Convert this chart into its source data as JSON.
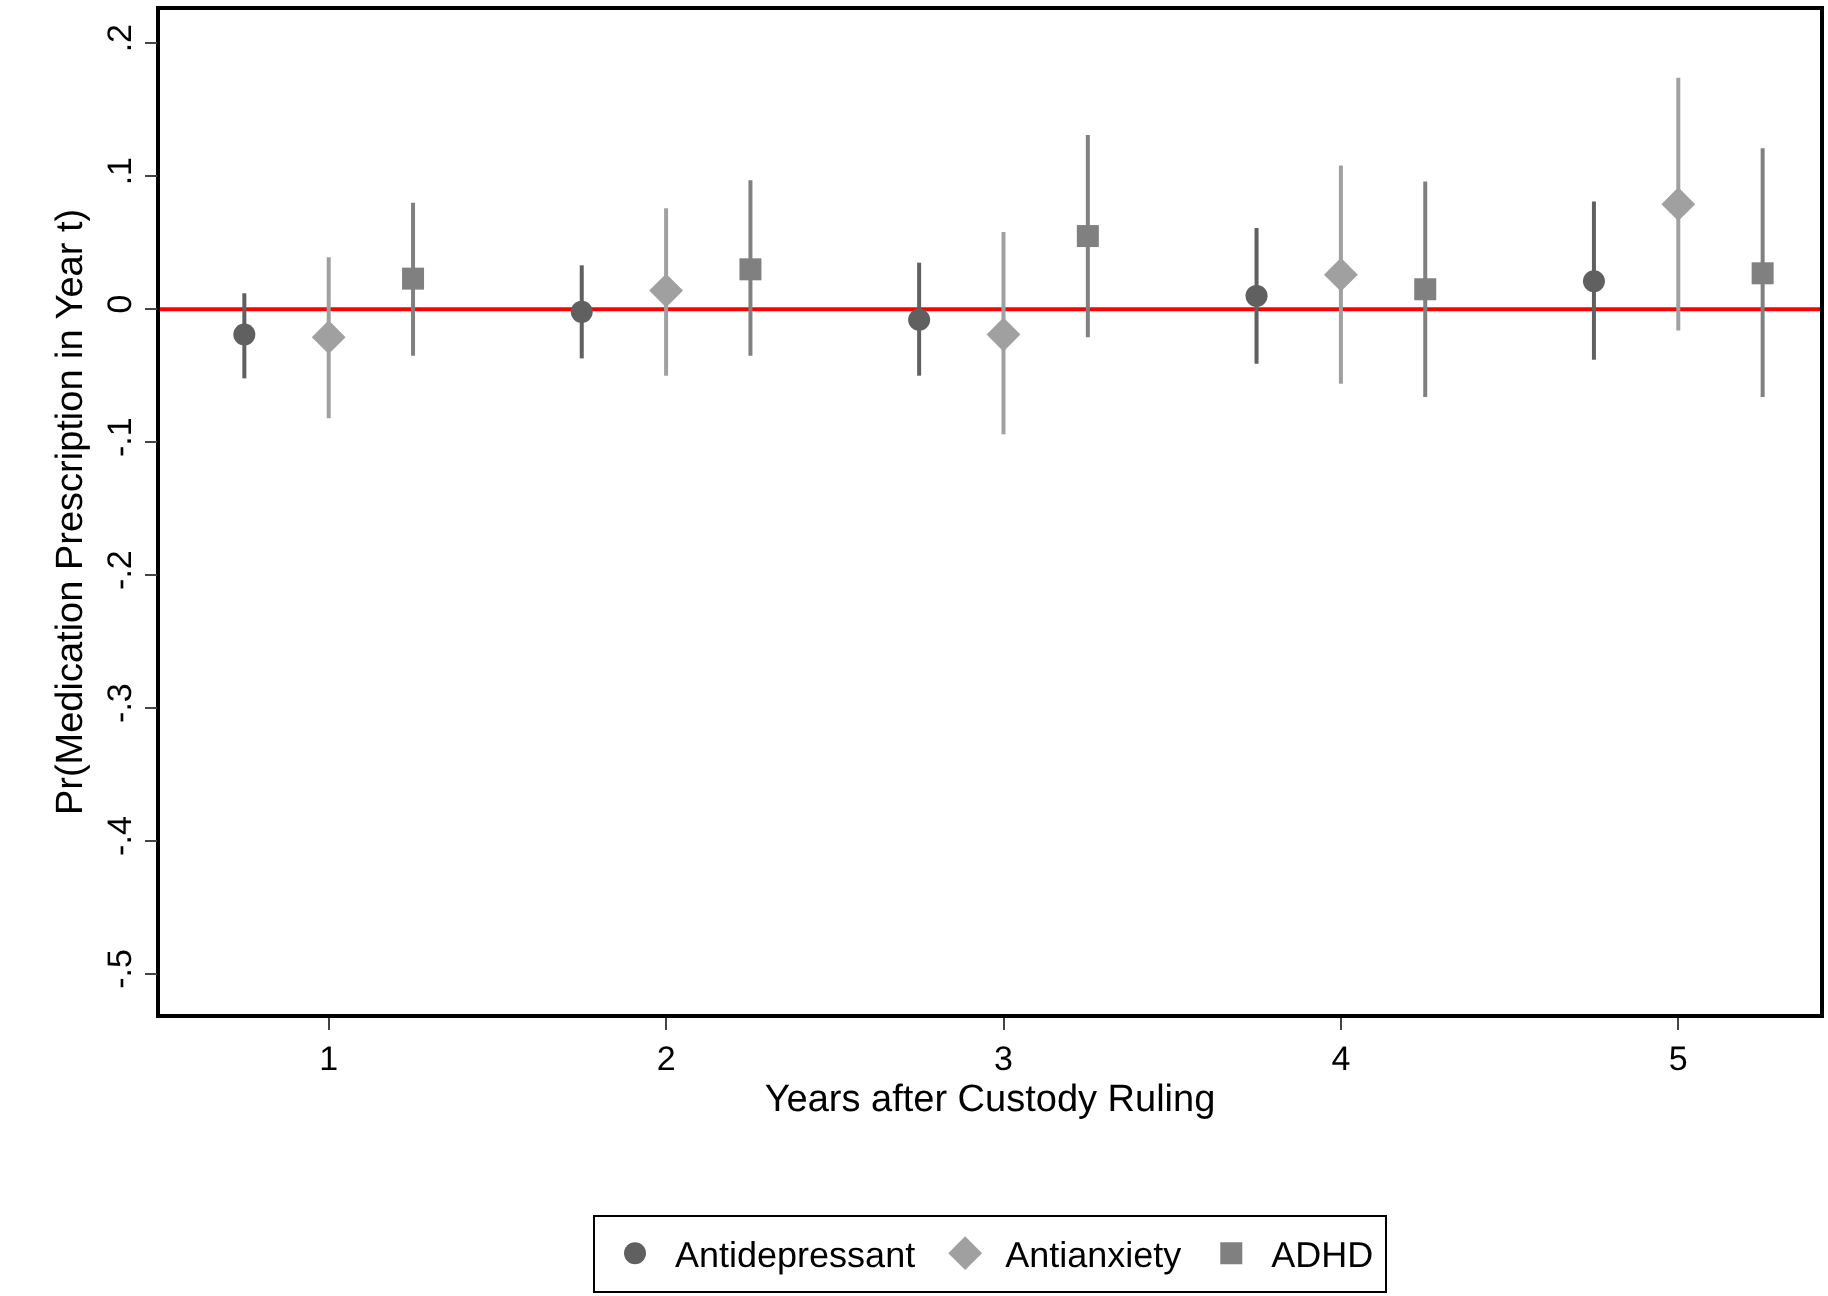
{
  "chart_data": {
    "type": "scatter",
    "xlabel": "Years after Custody Ruling",
    "ylabel": "Pr(Medication Prescription in Year t)",
    "xlim": [
      0.5,
      5.42
    ],
    "xticks": [
      1,
      2,
      3,
      4,
      5
    ],
    "ylim": [
      -0.53,
      0.225
    ],
    "yticks": [
      {
        "value": 0.2,
        "label": ".2"
      },
      {
        "value": 0.1,
        "label": ".1"
      },
      {
        "value": 0,
        "label": "0"
      },
      {
        "value": -0.1,
        "label": "-.1"
      },
      {
        "value": -0.2,
        "label": "-.2"
      },
      {
        "value": -0.3,
        "label": "-.3"
      },
      {
        "value": -0.4,
        "label": "-.4"
      },
      {
        "value": -0.5,
        "label": "-.5"
      }
    ],
    "grid": false,
    "legend": "bottom",
    "ref_lines": [
      {
        "axis": "y",
        "value": 0,
        "color": "#ff0000",
        "line_style": "solid"
      }
    ],
    "series": [
      {
        "name": "Antidepressant",
        "color": "#606060",
        "marker": "circle",
        "x": [
          0.75,
          1.75,
          2.75,
          3.75,
          4.75
        ],
        "values": [
          -0.019,
          -0.002,
          -0.008,
          0.01,
          0.021
        ],
        "errors": [
          [
            -0.052,
            0.012
          ],
          [
            -0.037,
            0.033
          ],
          [
            -0.05,
            0.035
          ],
          [
            -0.041,
            0.061
          ],
          [
            -0.038,
            0.081
          ]
        ]
      },
      {
        "name": "Antianxiety",
        "color": "#a0a0a0",
        "marker": "diamond",
        "x": [
          1,
          2,
          3,
          4,
          5
        ],
        "values": [
          -0.021,
          0.014,
          -0.019,
          0.026,
          0.079
        ],
        "errors": [
          [
            -0.082,
            0.039
          ],
          [
            -0.05,
            0.076
          ],
          [
            -0.094,
            0.058
          ],
          [
            -0.056,
            0.108
          ],
          [
            -0.016,
            0.174
          ]
        ]
      },
      {
        "name": "ADHD",
        "color": "#808080",
        "marker": "square",
        "x": [
          1.25,
          2.25,
          3.25,
          4.25,
          5.25
        ],
        "values": [
          0.023,
          0.03,
          0.055,
          0.015,
          0.027
        ],
        "errors": [
          [
            -0.035,
            0.08
          ],
          [
            -0.035,
            0.097
          ],
          [
            -0.021,
            0.131
          ],
          [
            -0.066,
            0.096
          ],
          [
            -0.066,
            0.121
          ]
        ]
      }
    ]
  }
}
